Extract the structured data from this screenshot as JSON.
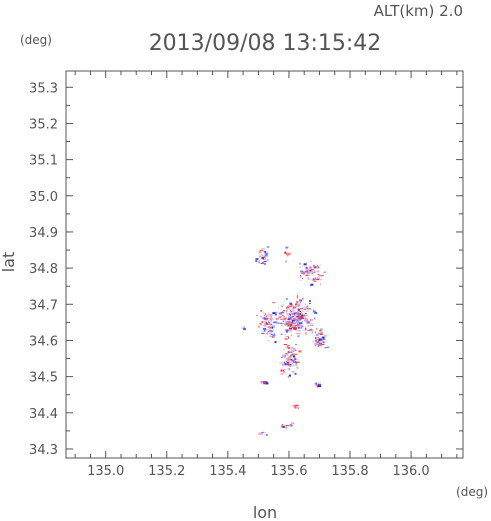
{
  "chart_data": {
    "type": "scatter",
    "title": "2013/09/08 13:15:42",
    "subtitle": "ALT(km) 2.0",
    "xlabel": "lon",
    "ylabel": "lat",
    "x_unit": "(deg)",
    "y_unit": "(deg)",
    "xlim": [
      134.87,
      136.17
    ],
    "ylim": [
      34.275,
      35.345
    ],
    "x_ticks": [
      "135.0",
      "135.2",
      "135.4",
      "135.6",
      "135.8",
      "136.0"
    ],
    "y_ticks": [
      "34.3",
      "34.4",
      "34.5",
      "34.6",
      "34.7",
      "34.8",
      "34.9",
      "35.0",
      "35.1",
      "35.2",
      "35.3"
    ],
    "grid": false,
    "colors": {
      "positive": "#ff5a5a",
      "negative": "#5a5aff",
      "axis": "#555555"
    },
    "clusters": [
      {
        "lon": 135.51,
        "lat": 34.835,
        "spread_lon": 0.018,
        "spread_lat": 0.025,
        "count": 40
      },
      {
        "lon": 135.59,
        "lat": 34.84,
        "spread_lon": 0.01,
        "spread_lat": 0.02,
        "count": 15
      },
      {
        "lon": 135.67,
        "lat": 34.79,
        "spread_lon": 0.04,
        "spread_lat": 0.03,
        "count": 70
      },
      {
        "lon": 135.62,
        "lat": 34.66,
        "spread_lon": 0.055,
        "spread_lat": 0.045,
        "count": 320
      },
      {
        "lon": 135.53,
        "lat": 34.65,
        "spread_lon": 0.03,
        "spread_lat": 0.04,
        "count": 110
      },
      {
        "lon": 135.6,
        "lat": 34.55,
        "spread_lon": 0.025,
        "spread_lat": 0.04,
        "count": 130
      },
      {
        "lon": 135.7,
        "lat": 34.6,
        "spread_lon": 0.02,
        "spread_lat": 0.03,
        "count": 50
      },
      {
        "lon": 135.69,
        "lat": 34.48,
        "spread_lon": 0.012,
        "spread_lat": 0.008,
        "count": 15
      },
      {
        "lon": 135.515,
        "lat": 34.487,
        "spread_lon": 0.01,
        "spread_lat": 0.003,
        "count": 12
      },
      {
        "lon": 135.623,
        "lat": 34.42,
        "spread_lon": 0.01,
        "spread_lat": 0.004,
        "count": 14
      },
      {
        "lon": 135.59,
        "lat": 34.365,
        "spread_lon": 0.015,
        "spread_lat": 0.01,
        "count": 12
      },
      {
        "lon": 135.51,
        "lat": 34.345,
        "spread_lon": 0.015,
        "spread_lat": 0.005,
        "count": 8
      },
      {
        "lon": 135.45,
        "lat": 34.635,
        "spread_lon": 0.005,
        "spread_lat": 0.005,
        "count": 4
      }
    ]
  }
}
